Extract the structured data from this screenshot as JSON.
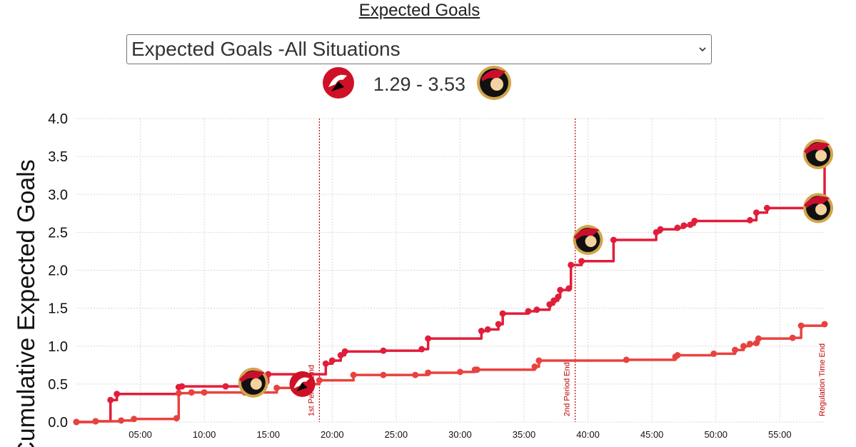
{
  "page": {
    "title": "Expected Goals",
    "dropdown": {
      "selected": "Expected Goals -All Situations"
    },
    "score": {
      "home": "1.29",
      "separator": "-",
      "away": "3.53",
      "home_team_icon": "devils-logo-icon",
      "away_team_icon": "senators-logo-icon"
    }
  },
  "colors": {
    "senators": "#e01e3a",
    "devils": "#e8423f",
    "period_line": "#c00000",
    "grid": "#d8d8d8"
  },
  "chart_data": {
    "type": "line",
    "step": true,
    "title": "",
    "xlabel": "",
    "ylabel": "Cumulative Expected Goals",
    "xlim": [
      "00:00",
      "58:30"
    ],
    "ylim": [
      0,
      4.0
    ],
    "x_tick_labels": [
      "05:00",
      "10:00",
      "15:00",
      "20:00",
      "25:00",
      "30:00",
      "35:00",
      "40:00",
      "45:00",
      "50:00",
      "55:00"
    ],
    "y_tick_labels": [
      "0.0",
      "0.5",
      "1.0",
      "1.5",
      "2.0",
      "2.5",
      "3.0",
      "3.5",
      "4.0"
    ],
    "grid": true,
    "annotations": [
      {
        "label": "1st Period End",
        "x": "19:00"
      },
      {
        "label": "2nd Period End",
        "x": "39:00"
      },
      {
        "label": "Regulation Time End",
        "x": "58:30"
      }
    ],
    "series": [
      {
        "team": "senators",
        "points": [
          [
            "00:00",
            0.0
          ],
          [
            "01:30",
            0.01
          ],
          [
            "02:40",
            0.29
          ],
          [
            "03:10",
            0.37
          ],
          [
            "08:00",
            0.46
          ],
          [
            "08:15",
            0.47
          ],
          [
            "11:40",
            0.47
          ],
          [
            "13:30",
            0.52
          ],
          [
            "15:00",
            0.63
          ],
          [
            "19:30",
            0.77
          ],
          [
            "20:00",
            0.81
          ],
          [
            "20:40",
            0.88
          ],
          [
            "21:00",
            0.93
          ],
          [
            "24:00",
            0.94
          ],
          [
            "27:00",
            0.96
          ],
          [
            "27:30",
            1.1
          ],
          [
            "31:40",
            1.2
          ],
          [
            "32:10",
            1.22
          ],
          [
            "33:00",
            1.29
          ],
          [
            "33:20",
            1.43
          ],
          [
            "35:20",
            1.46
          ],
          [
            "36:00",
            1.48
          ],
          [
            "37:00",
            1.55
          ],
          [
            "37:20",
            1.6
          ],
          [
            "37:40",
            1.65
          ],
          [
            "37:50",
            1.74
          ],
          [
            "38:30",
            1.76
          ],
          [
            "38:40",
            2.07
          ],
          [
            "39:30",
            2.12
          ],
          [
            "42:00",
            2.4
          ],
          [
            "45:20",
            2.5
          ],
          [
            "45:40",
            2.54
          ],
          [
            "47:00",
            2.56
          ],
          [
            "47:30",
            2.59
          ],
          [
            "48:00",
            2.6
          ],
          [
            "48:20",
            2.65
          ],
          [
            "52:40",
            2.66
          ],
          [
            "53:10",
            2.76
          ],
          [
            "54:00",
            2.82
          ],
          [
            "57:30",
            2.82
          ],
          [
            "58:30",
            3.53
          ]
        ],
        "goals": [
          [
            "13:50",
            0.52
          ],
          [
            "58:00",
            2.82
          ],
          [
            "58:00",
            3.53
          ],
          [
            "40:00",
            2.4
          ]
        ]
      },
      {
        "team": "devils",
        "points": [
          [
            "00:00",
            0.0
          ],
          [
            "01:30",
            0.01
          ],
          [
            "03:30",
            0.02
          ],
          [
            "04:30",
            0.04
          ],
          [
            "07:50",
            0.05
          ],
          [
            "08:00",
            0.38
          ],
          [
            "09:00",
            0.39
          ],
          [
            "10:00",
            0.39
          ],
          [
            "13:10",
            0.39
          ],
          [
            "15:40",
            0.45
          ],
          [
            "17:30",
            0.5
          ],
          [
            "19:00",
            0.55
          ],
          [
            "21:40",
            0.62
          ],
          [
            "24:00",
            0.62
          ],
          [
            "26:30",
            0.62
          ],
          [
            "27:30",
            0.65
          ],
          [
            "30:00",
            0.66
          ],
          [
            "31:10",
            0.69
          ],
          [
            "31:20",
            0.69
          ],
          [
            "35:50",
            0.73
          ],
          [
            "36:10",
            0.81
          ],
          [
            "43:00",
            0.82
          ],
          [
            "46:50",
            0.86
          ],
          [
            "47:00",
            0.88
          ],
          [
            "49:50",
            0.9
          ],
          [
            "51:30",
            0.95
          ],
          [
            "52:10",
            1.0
          ],
          [
            "52:40",
            1.03
          ],
          [
            "53:10",
            1.04
          ],
          [
            "53:20",
            1.1
          ],
          [
            "56:00",
            1.11
          ],
          [
            "56:40",
            1.27
          ],
          [
            "58:30",
            1.29
          ]
        ],
        "goals": [
          [
            "17:40",
            0.5
          ]
        ]
      }
    ]
  }
}
